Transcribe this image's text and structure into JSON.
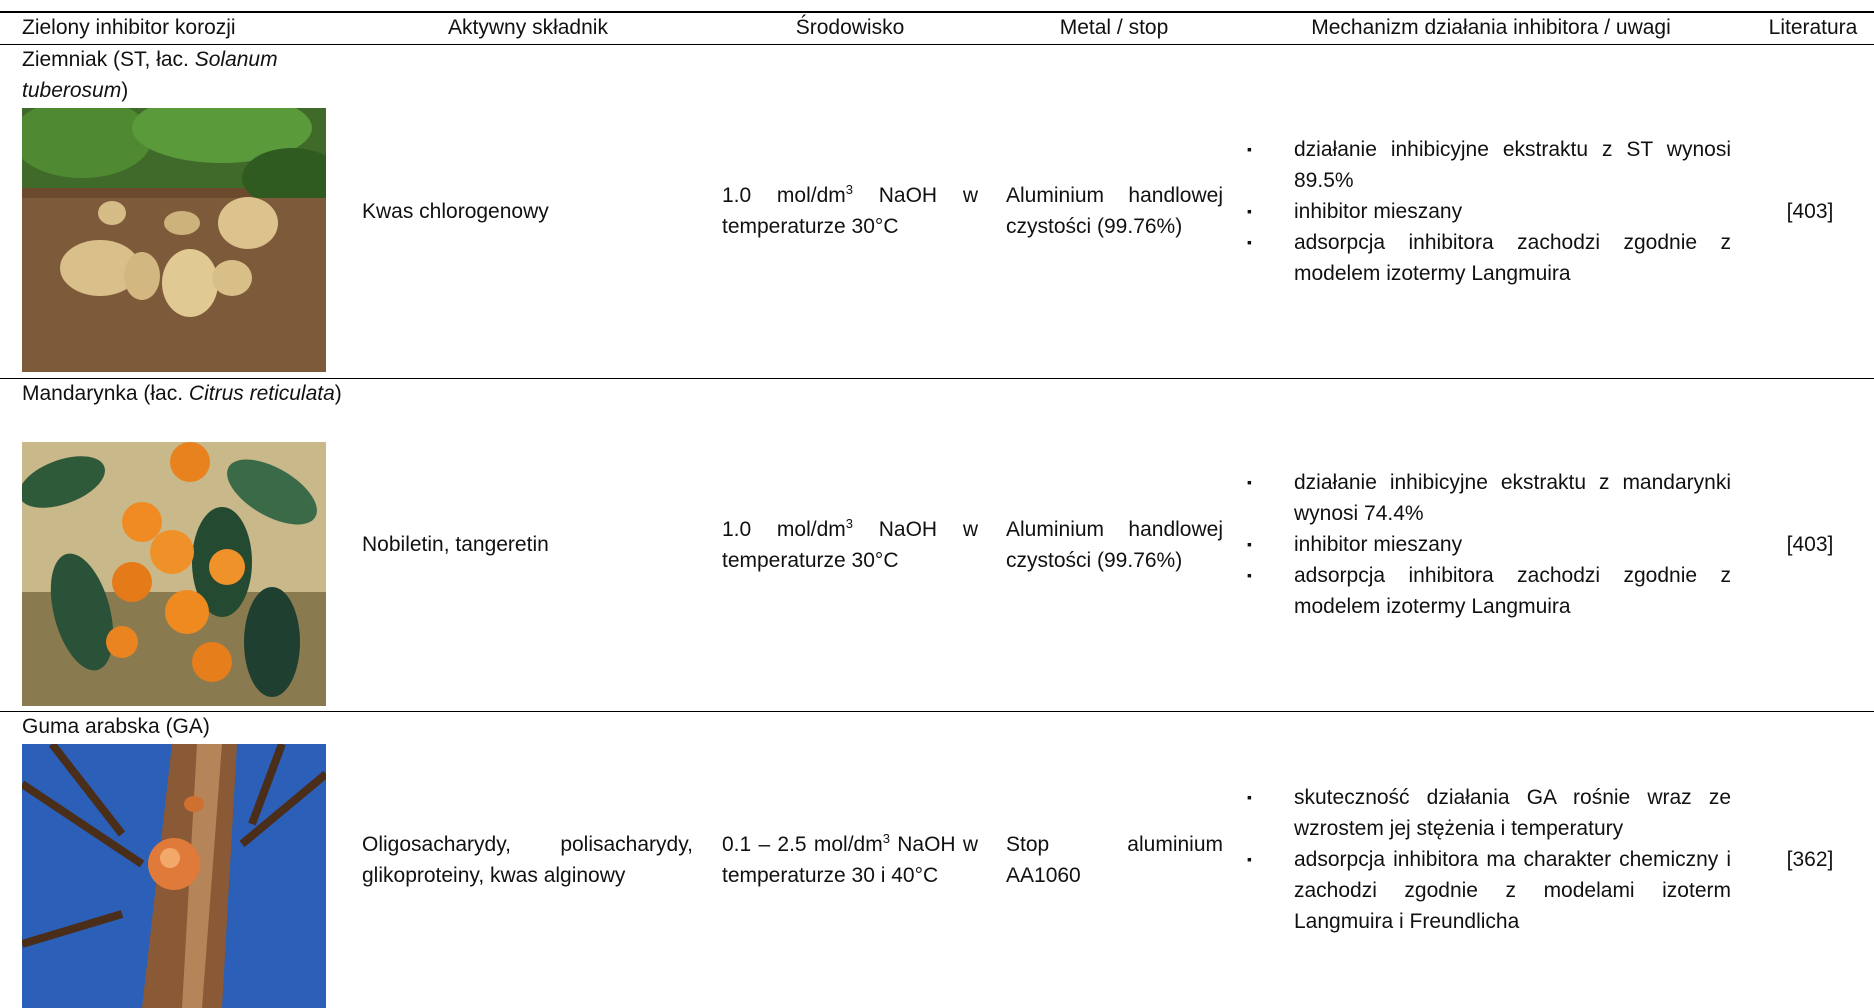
{
  "table": {
    "headers": [
      "Zielony inhibitor korozji",
      "Aktywny składnik",
      "Środowisko",
      "Metal / stop",
      "Mechanizm działania inhibitora / uwagi",
      "Literatura"
    ],
    "rows": [
      {
        "name": [
          "Ziemniak (ST, łac. ",
          "Solanum tuberosum",
          ")"
        ],
        "ingredient": "Kwas chlorogenowy",
        "environment": [
          "1.0 mol/dm",
          "3",
          " NaOH w temperaturze 30°C"
        ],
        "metal": "Aluminium handlowej czystości (99.76%)",
        "notes": [
          "działanie inhibicyjne ekstraktu z ST wynosi 89.5%",
          "inhibitor mieszany",
          "adsorpcja inhibitora zachodzi zgodnie z modelem izotermy Langmuira"
        ],
        "ref": "[403]"
      },
      {
        "name": [
          "Mandarynka (łac. ",
          "Citrus reticulata",
          ")"
        ],
        "ingredient": "Nobiletin, tangeretin",
        "environment": [
          "1.0 mol/dm",
          "3",
          " NaOH w temperaturze 30°C"
        ],
        "metal": "Aluminium handlowej czystości (99.76%)",
        "notes": [
          "działanie inhibicyjne ekstraktu z mandarynki wynosi 74.4%",
          "inhibitor mieszany",
          "adsorpcja inhibitora zachodzi zgodnie z modelem izotermy Langmuira"
        ],
        "ref": "[403]"
      },
      {
        "name": [
          "Guma arabska (GA)"
        ],
        "ingredient": "Oligosacharydy, polisacharydy, glikoproteiny, kwas alginowy",
        "environment": [
          "0.1 – 2.5 mol/dm",
          "3",
          " NaOH w temperaturze 30 i 40°C"
        ],
        "metal": "Stop aluminium AA1060",
        "notes": [
          "skuteczność działania GA rośnie wraz ze wzrostem jej stężenia i temperatury",
          "adsorpcja inhibitora ma charakter chemiczny i zachodzi zgodnie z modelami izoterm Langmuira i Freundlicha"
        ],
        "ref": "[362]"
      }
    ]
  }
}
